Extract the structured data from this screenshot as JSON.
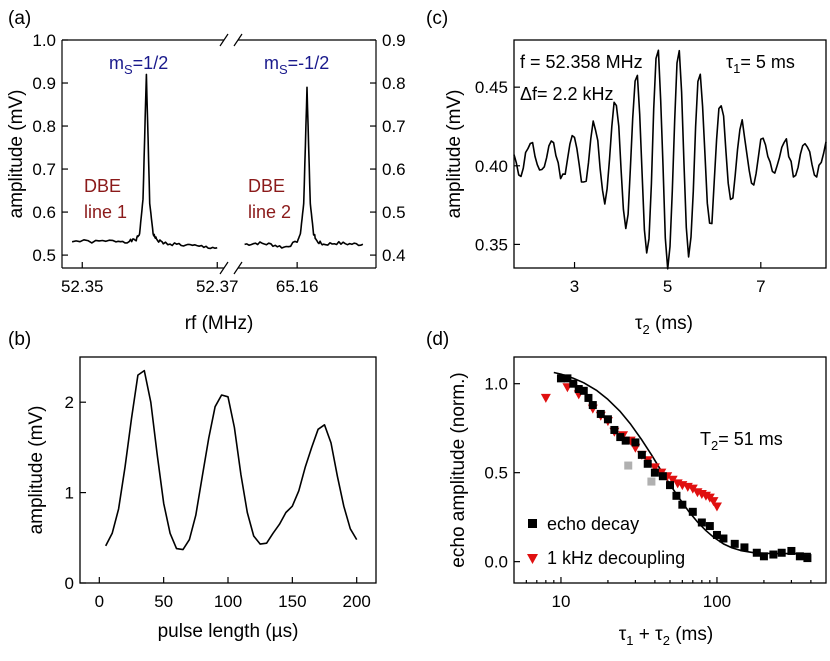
{
  "chart_data": [
    {
      "id": "a",
      "type": "line",
      "panel_label": "(a)",
      "xlabel": "rf (MHz)",
      "ylabel": "amplitude (mV)",
      "x_ticks_left": [
        "52.35",
        "52.37"
      ],
      "x_ticks_right": [
        "65.16"
      ],
      "y_ticks_left": [
        "0.5",
        "0.6",
        "0.7",
        "0.8",
        "0.9",
        "1.0"
      ],
      "y_ticks_right": [
        "0.4",
        "0.5",
        "0.6",
        "0.7",
        "0.8",
        "0.9"
      ],
      "ylim_left": [
        0.47,
        1.0
      ],
      "ylim_right": [
        0.37,
        0.9
      ],
      "xlim_left": [
        52.347,
        52.371
      ],
      "xlim_right": [
        65.151,
        65.172
      ],
      "annotations": {
        "ms_left": "m",
        "ms_left_sub": "S",
        "ms_left_val": "=1/2",
        "ms_right": "m",
        "ms_right_sub": "S",
        "ms_right_val": "=-1/2",
        "dbe1_a": "DBE",
        "dbe1_b": "line 1",
        "dbe2_a": "DBE",
        "dbe2_b": "line 2"
      },
      "colors": {
        "ms": "#1a1a8c",
        "dbe": "#8b1a1a"
      },
      "series": [
        {
          "segment": "left",
          "x": [
            52.3485,
            52.352,
            52.355,
            52.357,
            52.358,
            52.3585,
            52.359,
            52.3595,
            52.36,
            52.3605,
            52.361,
            52.362,
            52.364,
            52.366,
            52.368,
            52.37
          ],
          "y": [
            0.533,
            0.531,
            0.533,
            0.532,
            0.536,
            0.55,
            0.63,
            0.92,
            0.62,
            0.55,
            0.536,
            0.528,
            0.525,
            0.522,
            0.519,
            0.517
          ]
        },
        {
          "segment": "right",
          "x": [
            65.152,
            65.154,
            65.156,
            65.158,
            65.16,
            65.1605,
            65.161,
            65.1615,
            65.162,
            65.1625,
            65.163,
            65.164,
            65.166,
            65.168,
            65.17
          ],
          "y": [
            0.425,
            0.428,
            0.425,
            0.418,
            0.43,
            0.45,
            0.52,
            0.79,
            0.52,
            0.45,
            0.432,
            0.425,
            0.428,
            0.426,
            0.425
          ]
        }
      ]
    },
    {
      "id": "b",
      "type": "line",
      "panel_label": "(b)",
      "xlabel": "pulse length (µs)",
      "ylabel": "amplitude (mV)",
      "xlim": [
        -15,
        215
      ],
      "ylim": [
        0,
        2.5
      ],
      "x_ticks": [
        0,
        50,
        100,
        150,
        200
      ],
      "y_ticks": [
        0,
        1,
        2
      ],
      "series": [
        {
          "x": [
            5,
            10,
            15,
            20,
            25,
            30,
            35,
            40,
            45,
            50,
            55,
            60,
            65,
            70,
            75,
            80,
            85,
            90,
            95,
            100,
            105,
            110,
            115,
            120,
            125,
            130,
            135,
            140,
            145,
            150,
            155,
            160,
            165,
            170,
            175,
            180,
            185,
            190,
            195,
            200
          ],
          "y": [
            0.41,
            0.55,
            0.82,
            1.28,
            1.82,
            2.3,
            2.35,
            2.0,
            1.42,
            0.88,
            0.55,
            0.38,
            0.37,
            0.48,
            0.75,
            1.18,
            1.6,
            1.95,
            2.08,
            2.06,
            1.72,
            1.2,
            0.78,
            0.52,
            0.43,
            0.44,
            0.55,
            0.65,
            0.78,
            0.85,
            1.02,
            1.28,
            1.5,
            1.7,
            1.75,
            1.55,
            1.18,
            0.85,
            0.6,
            0.48
          ]
        }
      ]
    },
    {
      "id": "c",
      "type": "line",
      "panel_label": "(c)",
      "xlabel": "τ",
      "xlabel_sub": "2",
      "xlabel_rest": " (ms)",
      "ylabel": "amplitude (mV)",
      "xlim": [
        1.7,
        8.4
      ],
      "ylim": [
        0.335,
        0.48
      ],
      "x_ticks": [
        3,
        5,
        7
      ],
      "y_ticks": [
        0.35,
        0.4,
        0.45
      ],
      "annotations": {
        "freq": "f = 52.358 MHz",
        "dfreq": "Δf= 2.2 kHz",
        "tau1": "τ",
        "tau1_sub": "1",
        "tau1_val": "= 5 ms"
      },
      "series": [
        {
          "oscillation": {
            "start": 1.7,
            "end": 8.4,
            "step": 0.05,
            "period": 0.455,
            "phase": 4.78,
            "center": 5.0,
            "baseline": 0.405,
            "amplitude": 0.06,
            "width": 1.25,
            "floor": 0.01
          }
        }
      ]
    },
    {
      "id": "d",
      "type": "scatter",
      "panel_label": "(d)",
      "xlabel": "τ",
      "xlabel_sub1": "1",
      "xlabel_plus": " + τ",
      "xlabel_sub2": "2",
      "xlabel_rest": " (ms)",
      "ylabel": "echo amplitude (norm.)",
      "xscale": "log",
      "xlim": [
        5,
        500
      ],
      "ylim": [
        -0.12,
        1.15
      ],
      "x_ticks": [
        10,
        100
      ],
      "y_ticks": [
        0.0,
        0.5,
        1.0
      ],
      "annotations": {
        "t2": "T",
        "t2_sub": "2",
        "t2_val": "= 51 ms"
      },
      "legend": [
        "echo decay",
        "1 kHz decoupling"
      ],
      "legend_position": "bottom-left",
      "colors": {
        "echo": "#000000",
        "decoupling": "#e01010",
        "gray": "#b0b0b0"
      },
      "series": [
        {
          "name": "echo decay",
          "marker": "square",
          "x": [
            10,
            11,
            12,
            13,
            14,
            15,
            16,
            18,
            20,
            22,
            24,
            26,
            30,
            33,
            36,
            40,
            45,
            50,
            55,
            60,
            70,
            80,
            90,
            100,
            110,
            130,
            150,
            180,
            200,
            230,
            260,
            300,
            340,
            380
          ],
          "y": [
            1.03,
            1.03,
            1.0,
            0.97,
            0.96,
            0.92,
            0.88,
            0.83,
            0.8,
            0.74,
            0.7,
            0.68,
            0.67,
            0.6,
            0.55,
            0.5,
            0.48,
            0.43,
            0.37,
            0.32,
            0.28,
            0.22,
            0.2,
            0.15,
            0.13,
            0.1,
            0.08,
            0.05,
            0.03,
            0.04,
            0.05,
            0.06,
            0.03,
            0.02
          ]
        },
        {
          "name": "1 kHz decoupling",
          "marker": "triangle-down",
          "x": [
            8,
            11,
            13,
            16,
            18,
            20,
            22,
            25,
            28,
            30,
            33,
            36,
            40,
            44,
            48,
            52,
            56,
            60,
            65,
            70,
            75,
            80,
            85,
            90,
            95,
            100
          ],
          "y": [
            0.92,
            0.98,
            0.94,
            0.86,
            0.82,
            0.79,
            0.73,
            0.71,
            0.68,
            0.64,
            0.6,
            0.57,
            0.53,
            0.5,
            0.48,
            0.46,
            0.44,
            0.43,
            0.42,
            0.41,
            0.39,
            0.38,
            0.37,
            0.36,
            0.34,
            0.31
          ]
        },
        {
          "name": "",
          "marker": "square",
          "x": [
            27,
            38
          ],
          "y": [
            0.54,
            0.45
          ]
        }
      ],
      "fit": {
        "model": "1.025*exp(-(x/51)^1.8) + 0.045",
        "x": [
          9,
          10,
          12,
          14,
          17,
          20,
          24,
          28,
          33,
          38,
          44,
          51,
          58,
          66,
          75,
          85,
          95,
          110,
          125,
          145,
          170,
          200,
          240,
          290,
          350,
          400
        ],
        "y": [
          1.063,
          1.054,
          1.031,
          1.005,
          0.961,
          0.912,
          0.843,
          0.772,
          0.684,
          0.601,
          0.51,
          0.422,
          0.35,
          0.282,
          0.223,
          0.174,
          0.138,
          0.1,
          0.077,
          0.061,
          0.051,
          0.047,
          0.045,
          0.045,
          0.045,
          0.045
        ]
      }
    }
  ]
}
